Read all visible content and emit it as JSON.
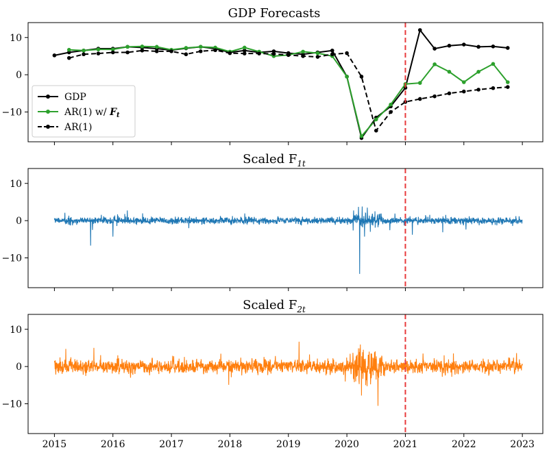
{
  "chart_data": [
    {
      "type": "line",
      "title": "GDP Forecasts",
      "xlabel": "",
      "ylabel": "",
      "xlim": [
        2014.55,
        2023.35
      ],
      "ylim": [
        -18,
        14
      ],
      "y_ticks": [
        10,
        0,
        -10
      ],
      "y_tick_labels": [
        "10",
        "0",
        "−10"
      ],
      "grid": false,
      "legend_position": "lower-left",
      "vline": {
        "x": 2021.0,
        "color": "#e8393b",
        "style": "dashed"
      },
      "series": [
        {
          "name": "GDP",
          "color": "#000000",
          "style": "solid",
          "marker": "circle",
          "x": [
            2015.0,
            2015.25,
            2015.5,
            2015.75,
            2016.0,
            2016.25,
            2016.5,
            2016.75,
            2017.0,
            2017.25,
            2017.5,
            2017.75,
            2018.0,
            2018.25,
            2018.5,
            2018.75,
            2019.0,
            2019.25,
            2019.5,
            2019.75,
            2020.0,
            2020.25,
            2020.5,
            2020.75,
            2021.0,
            2021.25,
            2021.5,
            2021.75,
            2022.0,
            2022.25,
            2022.5,
            2022.75
          ],
          "values": [
            5.2,
            6.0,
            6.5,
            7.0,
            7.0,
            7.5,
            7.3,
            7.0,
            6.6,
            7.1,
            7.5,
            7.0,
            6.0,
            6.5,
            6.0,
            6.3,
            5.8,
            5.5,
            6.0,
            6.5,
            -0.5,
            -17.0,
            -11.5,
            -8.5,
            -3.5,
            12.0,
            7.0,
            7.8,
            8.1,
            7.5,
            7.6,
            7.2
          ]
        },
        {
          "name": "AR(1) w/ F_t",
          "color": "#2ca02c",
          "style": "solid",
          "marker": "circle",
          "x": [
            2015.25,
            2015.5,
            2015.75,
            2016.0,
            2016.25,
            2016.5,
            2016.75,
            2017.0,
            2017.25,
            2017.5,
            2017.75,
            2018.0,
            2018.25,
            2018.5,
            2018.75,
            2019.0,
            2019.25,
            2019.5,
            2019.75,
            2020.0,
            2020.25,
            2020.5,
            2020.75,
            2021.0,
            2021.25,
            2021.5,
            2021.75,
            2022.0,
            2022.25,
            2022.5,
            2022.75
          ],
          "values": [
            6.7,
            6.5,
            6.8,
            6.8,
            7.5,
            7.6,
            7.5,
            6.7,
            7.2,
            7.5,
            7.3,
            6.2,
            7.3,
            6.2,
            5.0,
            5.3,
            6.2,
            5.8,
            5.0,
            -0.5,
            -16.5,
            -12.0,
            -8.0,
            -2.5,
            -2.2,
            2.8,
            0.8,
            -2.0,
            0.8,
            2.9,
            -2.0
          ]
        },
        {
          "name": "AR(1)",
          "color": "#000000",
          "style": "dashed",
          "marker": "circle",
          "x": [
            2015.25,
            2015.5,
            2015.75,
            2016.0,
            2016.25,
            2016.5,
            2016.75,
            2017.0,
            2017.25,
            2017.5,
            2017.75,
            2018.0,
            2018.25,
            2018.5,
            2018.75,
            2019.0,
            2019.25,
            2019.5,
            2019.75,
            2020.0,
            2020.25,
            2020.5,
            2020.75,
            2021.0,
            2021.25,
            2021.5,
            2021.75,
            2022.0,
            2022.25,
            2022.5,
            2022.75
          ],
          "values": [
            4.5,
            5.5,
            5.7,
            6.0,
            6.0,
            6.5,
            6.3,
            6.3,
            5.5,
            6.3,
            6.6,
            5.8,
            5.7,
            5.7,
            5.6,
            5.3,
            5.0,
            4.8,
            5.5,
            5.8,
            -0.5,
            -15.0,
            -10.0,
            -7.3,
            -6.5,
            -5.8,
            -5.0,
            -4.5,
            -4.0,
            -3.6,
            -3.3
          ]
        }
      ],
      "x_ticks": [
        2015,
        2016,
        2017,
        2018,
        2019,
        2020,
        2021,
        2022,
        2023
      ]
    },
    {
      "type": "line",
      "title": "Scaled F",
      "title_sub": "1t",
      "xlabel": "",
      "ylabel": "",
      "xlim": [
        2014.55,
        2023.35
      ],
      "ylim": [
        -18,
        14
      ],
      "y_ticks": [
        10,
        0,
        -10
      ],
      "y_tick_labels": [
        "10",
        "0",
        "−10"
      ],
      "grid": false,
      "vline": {
        "x": 2021.0,
        "color": "#e8393b",
        "style": "dashed"
      },
      "series": [
        {
          "name": "Scaled F1t",
          "color": "#1f77b4",
          "style": "solid",
          "daily": true,
          "x_start": 2015.0,
          "x_end": 2023.0,
          "base_noise": 0.45,
          "seed": 7,
          "spikes": [
            {
              "x": 2015.62,
              "value": -6.7
            },
            {
              "x": 2015.65,
              "value": -2.5
            },
            {
              "x": 2016.0,
              "value": -4.3
            },
            {
              "x": 2016.08,
              "value": 1.7
            },
            {
              "x": 2020.22,
              "value": -14.3
            },
            {
              "x": 2020.2,
              "value": 3.7
            },
            {
              "x": 2020.26,
              "value": 3.8
            },
            {
              "x": 2020.3,
              "value": -4.3
            },
            {
              "x": 2020.35,
              "value": 3.5
            },
            {
              "x": 2020.4,
              "value": -3.0
            },
            {
              "x": 2020.48,
              "value": 2.5
            },
            {
              "x": 2020.82,
              "value": 1.9
            },
            {
              "x": 2021.12,
              "value": -3.8
            },
            {
              "x": 2021.08,
              "value": 1.2
            }
          ]
        }
      ],
      "x_ticks": [
        2015,
        2016,
        2017,
        2018,
        2019,
        2020,
        2021,
        2022,
        2023
      ]
    },
    {
      "type": "line",
      "title": "Scaled F",
      "title_sub": "2t",
      "xlabel": "",
      "ylabel": "",
      "xlim": [
        2014.55,
        2023.35
      ],
      "ylim": [
        -18,
        14
      ],
      "y_ticks": [
        10,
        0,
        -10
      ],
      "y_tick_labels": [
        "10",
        "0",
        "−10"
      ],
      "grid": false,
      "vline": {
        "x": 2021.0,
        "color": "#e8393b",
        "style": "dashed"
      },
      "series": [
        {
          "name": "Scaled F2t",
          "color": "#ff7f0e",
          "style": "solid",
          "daily": true,
          "x_start": 2015.0,
          "x_end": 2023.0,
          "base_noise": 0.9,
          "seed": 19,
          "spikes": [
            {
              "x": 2020.25,
              "value": -7.8
            },
            {
              "x": 2020.2,
              "value": 4.9
            },
            {
              "x": 2020.28,
              "value": 4.5
            },
            {
              "x": 2020.32,
              "value": -5.0
            },
            {
              "x": 2020.15,
              "value": -4.0
            },
            {
              "x": 2020.38,
              "value": 4.0
            },
            {
              "x": 2020.5,
              "value": -3.5
            },
            {
              "x": 2021.3,
              "value": 3.5
            },
            {
              "x": 2022.9,
              "value": 3.6
            },
            {
              "x": 2016.3,
              "value": -3.0
            }
          ]
        }
      ],
      "x_ticks": [
        2015,
        2016,
        2017,
        2018,
        2019,
        2020,
        2021,
        2022,
        2023
      ]
    }
  ],
  "x_tick_labels": [
    "2015",
    "2016",
    "2017",
    "2018",
    "2019",
    "2020",
    "2021",
    "2022",
    "2023"
  ],
  "legend": {
    "gdp": "GDP",
    "arf_prefix": "AR(1) w/ ",
    "arf_symbol": "F",
    "arf_sub": "t",
    "ar": "AR(1)"
  }
}
